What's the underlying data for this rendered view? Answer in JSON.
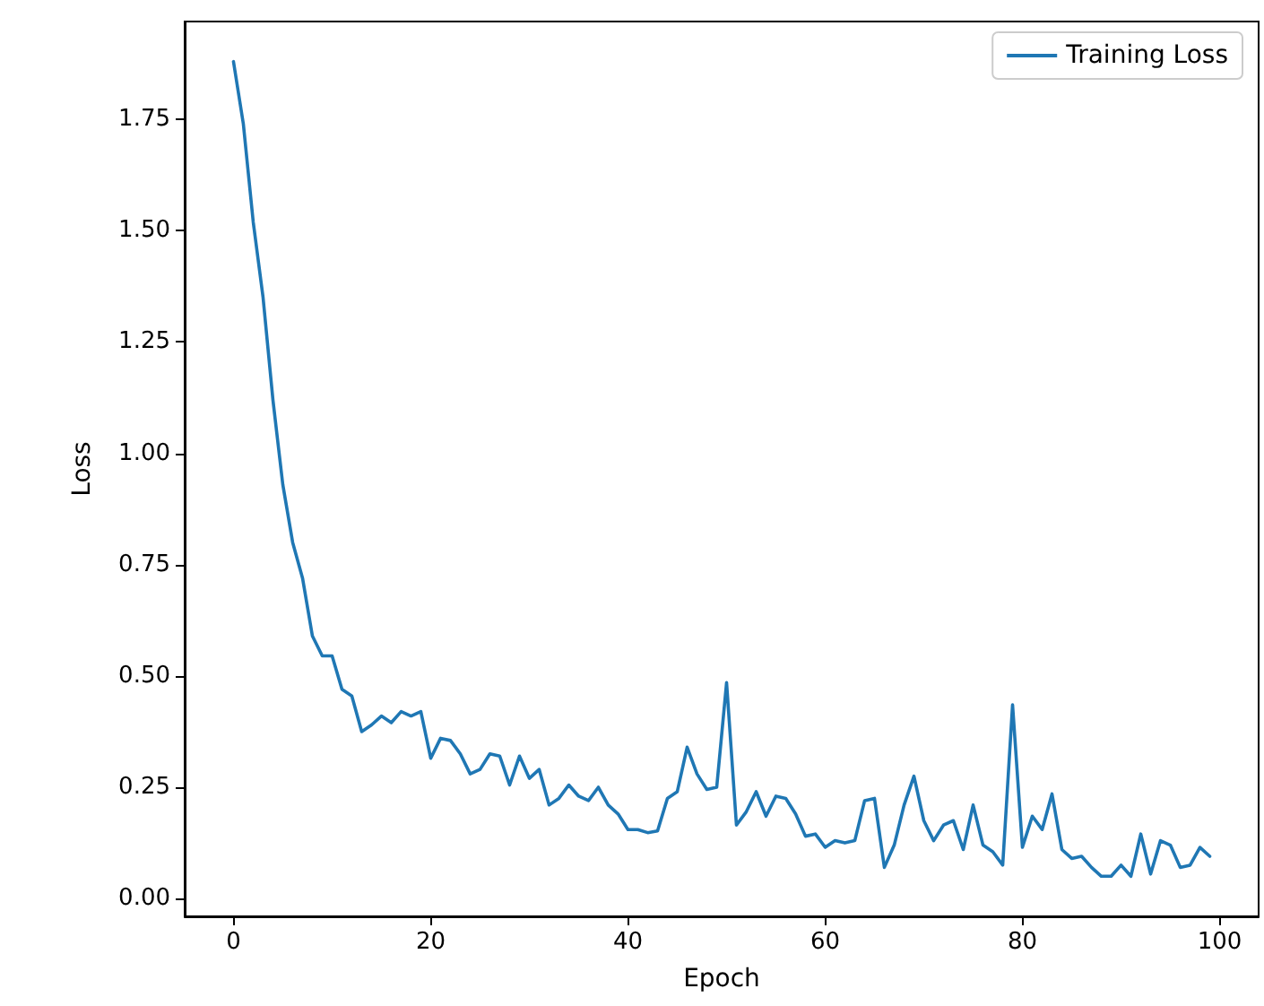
{
  "chart_data": {
    "type": "line",
    "xlabel": "Epoch",
    "ylabel": "Loss",
    "legend": "top right",
    "grid": false,
    "xlim": [
      -4.95,
      103.95
    ],
    "ylim": [
      -0.04,
      1.97
    ],
    "xticks": [
      0,
      20,
      40,
      60,
      80,
      100
    ],
    "yticks": [
      {
        "value": 0,
        "label": "0.00"
      },
      {
        "value": 0.25,
        "label": "0.25"
      },
      {
        "value": 0.5,
        "label": "0.50"
      },
      {
        "value": 0.75,
        "label": "0.75"
      },
      {
        "value": 1,
        "label": "1.00"
      },
      {
        "value": 1.25,
        "label": "1.25"
      },
      {
        "value": 1.5,
        "label": "1.50"
      },
      {
        "value": 1.75,
        "label": "1.75"
      }
    ],
    "x": [
      0,
      1,
      2,
      3,
      4,
      5,
      6,
      7,
      8,
      9,
      10,
      11,
      12,
      13,
      14,
      15,
      16,
      17,
      18,
      19,
      20,
      21,
      22,
      23,
      24,
      25,
      26,
      27,
      28,
      29,
      30,
      31,
      32,
      33,
      34,
      35,
      36,
      37,
      38,
      39,
      40,
      41,
      42,
      43,
      44,
      45,
      46,
      47,
      48,
      49,
      50,
      51,
      52,
      53,
      54,
      55,
      56,
      57,
      58,
      59,
      60,
      61,
      62,
      63,
      64,
      65,
      66,
      67,
      68,
      69,
      70,
      71,
      72,
      73,
      74,
      75,
      76,
      77,
      78,
      79,
      80,
      81,
      82,
      83,
      84,
      85,
      86,
      87,
      88,
      89,
      90,
      91,
      92,
      93,
      94,
      95,
      96,
      97,
      98,
      99
    ],
    "series": [
      {
        "name": "Training Loss",
        "color": "#1f77b4",
        "values": [
          1.88,
          1.74,
          1.52,
          1.35,
          1.12,
          0.93,
          0.8,
          0.72,
          0.59,
          0.545,
          0.545,
          0.47,
          0.455,
          0.375,
          0.39,
          0.41,
          0.395,
          0.42,
          0.41,
          0.42,
          0.315,
          0.36,
          0.355,
          0.325,
          0.28,
          0.29,
          0.325,
          0.32,
          0.255,
          0.32,
          0.27,
          0.29,
          0.21,
          0.225,
          0.255,
          0.23,
          0.22,
          0.25,
          0.21,
          0.19,
          0.155,
          0.155,
          0.148,
          0.152,
          0.225,
          0.24,
          0.34,
          0.28,
          0.245,
          0.25,
          0.485,
          0.165,
          0.195,
          0.24,
          0.185,
          0.23,
          0.225,
          0.19,
          0.14,
          0.145,
          0.115,
          0.13,
          0.125,
          0.13,
          0.22,
          0.225,
          0.07,
          0.12,
          0.21,
          0.275,
          0.175,
          0.13,
          0.165,
          0.175,
          0.11,
          0.21,
          0.12,
          0.105,
          0.075,
          0.435,
          0.115,
          0.185,
          0.155,
          0.235,
          0.11,
          0.09,
          0.095,
          0.07,
          0.05,
          0.05,
          0.075,
          0.05,
          0.145,
          0.055,
          0.13,
          0.12,
          0.07,
          0.075,
          0.115,
          0.095
        ]
      }
    ]
  }
}
